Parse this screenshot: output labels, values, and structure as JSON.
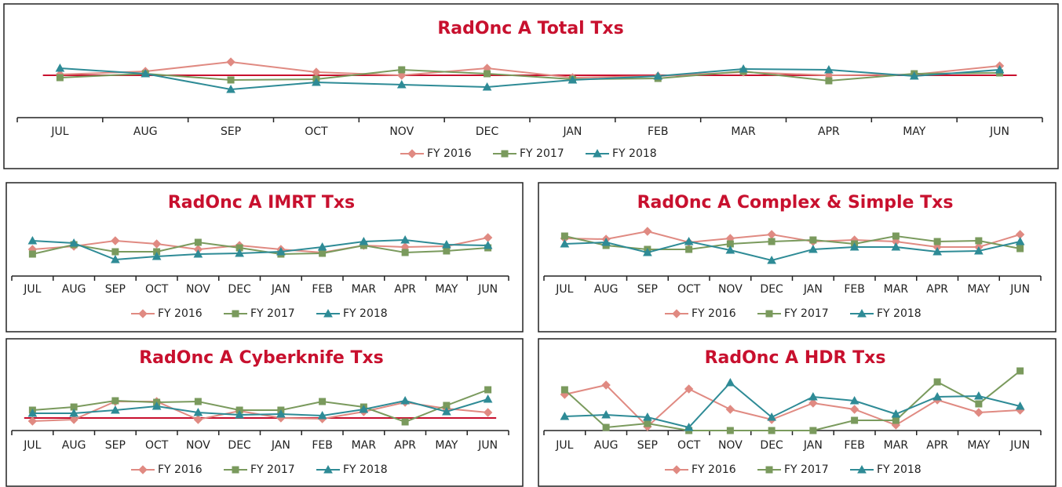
{
  "chart_data": [
    {
      "type": "line",
      "title": "RadOnc A Total Txs",
      "categories": [
        "JUL",
        "AUG",
        "SEP",
        "OCT",
        "NOV",
        "DEC",
        "JAN",
        "FEB",
        "MAR",
        "APR",
        "MAY",
        "JUN"
      ],
      "series": [
        {
          "name": "FY 2016",
          "color": "#e08a82",
          "values": [
            55,
            59,
            71,
            58,
            54,
            63,
            51,
            53,
            58,
            54,
            55,
            66
          ]
        },
        {
          "name": "FY 2017",
          "color": "#7a9a5d",
          "values": [
            51,
            56,
            48,
            49,
            61,
            56,
            49,
            50,
            59,
            47,
            56,
            57
          ]
        },
        {
          "name": "FY 2018",
          "color": "#2e8b96",
          "values": [
            63,
            56,
            36,
            45,
            42,
            39,
            48,
            53,
            62,
            61,
            53,
            61
          ]
        }
      ],
      "reference_lines": [
        {
          "value": 54,
          "color": "#c8102e"
        }
      ],
      "ylim": [
        0,
        90
      ]
    },
    {
      "type": "line",
      "title": "RadOnc A IMRT Txs",
      "categories": [
        "JUL",
        "AUG",
        "SEP",
        "OCT",
        "NOV",
        "DEC",
        "JAN",
        "FEB",
        "MAR",
        "APR",
        "MAY",
        "JUN"
      ],
      "series": [
        {
          "name": "FY 2016",
          "color": "#e08a82",
          "values": [
            34,
            38,
            45,
            41,
            34,
            39,
            34,
            30,
            39,
            37,
            38,
            49
          ]
        },
        {
          "name": "FY 2017",
          "color": "#7a9a5d",
          "values": [
            28,
            40,
            31,
            31,
            43,
            36,
            28,
            29,
            39,
            30,
            32,
            36
          ]
        },
        {
          "name": "FY 2018",
          "color": "#2e8b96",
          "values": [
            45,
            42,
            21,
            25,
            28,
            29,
            31,
            37,
            44,
            46,
            40,
            39
          ]
        }
      ],
      "ylim": [
        0,
        80
      ]
    },
    {
      "type": "line",
      "title": "RadOnc A Complex & Simple Txs",
      "categories": [
        "JUL",
        "AUG",
        "SEP",
        "OCT",
        "NOV",
        "DEC",
        "JAN",
        "FEB",
        "MAR",
        "APR",
        "MAY",
        "JUN"
      ],
      "series": [
        {
          "name": "FY 2016",
          "color": "#e08a82",
          "values": [
            48,
            47,
            57,
            43,
            48,
            53,
            44,
            46,
            44,
            37,
            37,
            53
          ]
        },
        {
          "name": "FY 2017",
          "color": "#7a9a5d",
          "values": [
            51,
            39,
            34,
            34,
            41,
            44,
            46,
            41,
            51,
            44,
            45,
            35
          ]
        },
        {
          "name": "FY 2018",
          "color": "#2e8b96",
          "values": [
            41,
            43,
            30,
            44,
            33,
            20,
            34,
            37,
            37,
            31,
            32,
            44
          ]
        }
      ],
      "ylim": [
        0,
        80
      ]
    },
    {
      "type": "line",
      "title": "RadOnc A Cyberknife Txs",
      "categories": [
        "JUL",
        "AUG",
        "SEP",
        "OCT",
        "NOV",
        "DEC",
        "JAN",
        "FEB",
        "MAR",
        "APR",
        "MAY",
        "JUN"
      ],
      "series": [
        {
          "name": "FY 2016",
          "color": "#e08a82",
          "values": [
            12,
            14,
            37,
            37,
            14,
            25,
            16,
            15,
            24,
            36,
            28,
            23
          ]
        },
        {
          "name": "FY 2017",
          "color": "#7a9a5d",
          "values": [
            26,
            30,
            38,
            36,
            37,
            26,
            26,
            37,
            30,
            11,
            32,
            52
          ]
        },
        {
          "name": "FY 2018",
          "color": "#2e8b96",
          "values": [
            22,
            22,
            26,
            31,
            23,
            20,
            21,
            19,
            27,
            38,
            24,
            40
          ]
        }
      ],
      "reference_lines": [
        {
          "value": 16,
          "color": "#c8102e"
        }
      ],
      "ylim": [
        0,
        80
      ]
    },
    {
      "type": "line",
      "title": "RadOnc A HDR Txs",
      "categories": [
        "JUL",
        "AUG",
        "SEP",
        "OCT",
        "NOV",
        "DEC",
        "JAN",
        "FEB",
        "MAR",
        "APR",
        "MAY",
        "JUN"
      ],
      "series": [
        {
          "name": "FY 2016",
          "color": "#e08a82",
          "values": [
            46,
            58,
            5,
            53,
            27,
            14,
            35,
            27,
            7,
            39,
            23,
            26
          ]
        },
        {
          "name": "FY 2017",
          "color": "#7a9a5d",
          "values": [
            52,
            4,
            9,
            0,
            0,
            0,
            0,
            13,
            13,
            62,
            34,
            76
          ]
        },
        {
          "name": "FY 2018",
          "color": "#2e8b96",
          "values": [
            18,
            20,
            17,
            4,
            61,
            17,
            43,
            38,
            21,
            43,
            44,
            31
          ]
        }
      ],
      "ylim": [
        0,
        80
      ]
    }
  ]
}
